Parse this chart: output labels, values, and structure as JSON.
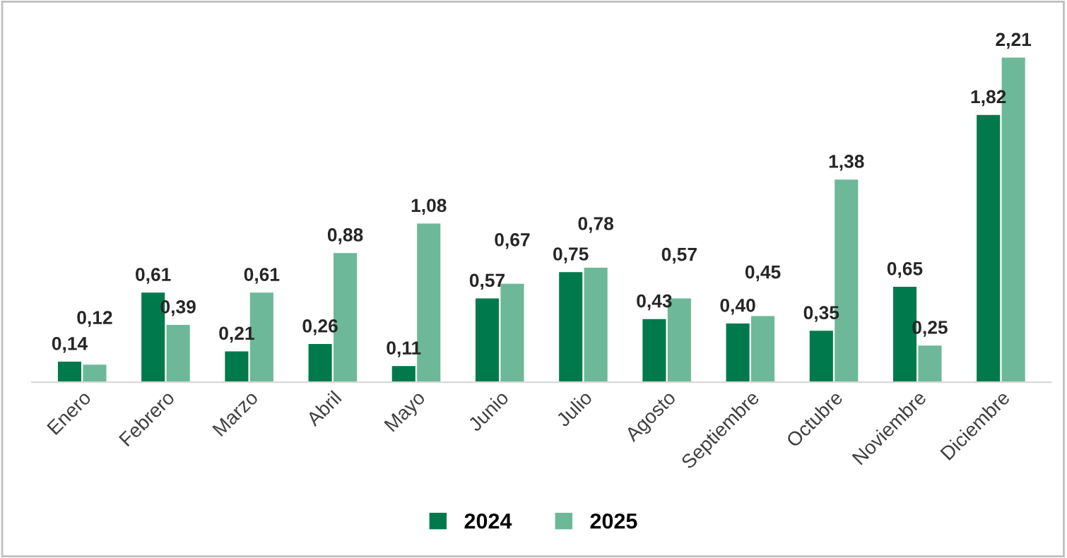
{
  "chart_data": {
    "type": "bar",
    "categories": [
      "Enero",
      "Febrero",
      "Marzo",
      "Abril",
      "Mayo",
      "Junio",
      "Julio",
      "Agosto",
      "Septiembre",
      "Octubre",
      "Noviembre",
      "Diciembre"
    ],
    "series": [
      {
        "name": "2024",
        "color": "#007a4d",
        "values": [
          0.14,
          0.61,
          0.21,
          0.26,
          0.11,
          0.57,
          0.75,
          0.43,
          0.4,
          0.35,
          0.65,
          1.82
        ],
        "value_labels": [
          "0,14",
          "0,61",
          "0,21",
          "0,26",
          "0,11",
          "0,57",
          "0,75",
          "0,43",
          "0,40",
          "0,35",
          "0,65",
          "1,82"
        ]
      },
      {
        "name": "2025",
        "color": "#6db898",
        "values": [
          0.12,
          0.39,
          0.61,
          0.88,
          1.08,
          0.67,
          0.78,
          0.57,
          0.45,
          1.38,
          0.25,
          2.21
        ],
        "value_labels": [
          "0,12",
          "0,39",
          "0,61",
          "0,88",
          "1,08",
          "0,67",
          "0,78",
          "0,57",
          "0,45",
          "1,38",
          "0,25",
          "2,21"
        ]
      }
    ],
    "legend": "bottom",
    "grid": false
  }
}
